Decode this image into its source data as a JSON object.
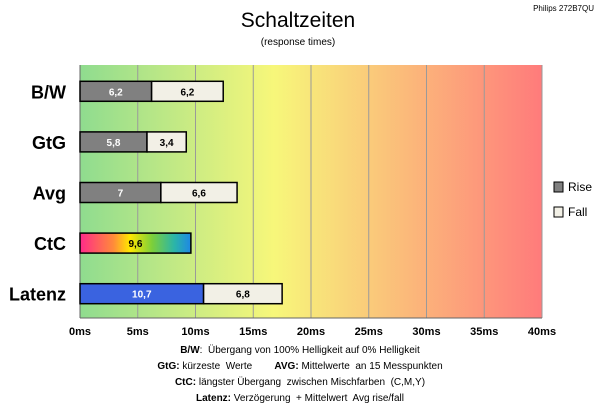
{
  "chart_data": {
    "type": "bar",
    "title": "Schaltzeiten",
    "subtitle": "(response times)",
    "corner_label": "Philips 272B7QU",
    "categories": [
      "B/W",
      "GtG",
      "Avg",
      "CtC",
      "Latenz"
    ],
    "series": [
      {
        "name": "Rise",
        "color": "#808080",
        "values": [
          6.2,
          5.8,
          7,
          null,
          null
        ],
        "labels": [
          "6,2",
          "5,8",
          "7",
          "",
          ""
        ]
      },
      {
        "name": "Fall",
        "color": "#f2f0e6",
        "values": [
          6.2,
          3.4,
          6.6,
          null,
          null
        ],
        "labels": [
          "6,2",
          "3,4",
          "6,6",
          "",
          ""
        ]
      },
      {
        "name": "",
        "color": "#gradient-ctc",
        "values": [
          null,
          null,
          null,
          9.6,
          null
        ],
        "labels": [
          "",
          "",
          "",
          "9,6",
          ""
        ]
      },
      {
        "name": "",
        "color": "#3a63e0",
        "values": [
          null,
          null,
          null,
          null,
          10.7
        ],
        "labels": [
          "",
          "",
          "",
          "",
          "10,7"
        ]
      },
      {
        "name": "",
        "color": "#f2f0e6",
        "values": [
          null,
          null,
          null,
          null,
          6.8
        ],
        "labels": [
          "",
          "",
          "",
          "",
          "6,8"
        ]
      }
    ],
    "stacked": true,
    "orientation": "horizontal",
    "xlim": [
      0,
      40
    ],
    "xticks": [
      "0ms",
      "5ms",
      "10ms",
      "15ms",
      "20ms",
      "25ms",
      "30ms",
      "35ms",
      "40ms"
    ],
    "grid": true,
    "legend": {
      "position": "right",
      "items": [
        "Rise",
        "Fall"
      ]
    },
    "background_gradient": [
      "#8fdc8f",
      "#f7f77a",
      "#ff7b7b"
    ]
  },
  "footnotes": [
    [
      {
        "b": "B/W",
        "t": ":  Übergang von 100% Helligkeit auf 0% Helligkeit"
      }
    ],
    [
      {
        "b": "GtG:",
        "t": " kürzeste  Werte        "
      },
      {
        "b": "AVG:",
        "t": " Mittelwerte  an 15 Messpunkten"
      }
    ],
    [
      {
        "b": "CtC:",
        "t": " längster Übergang  zwischen Mischfarben  (C,M,Y)"
      }
    ],
    [
      {
        "b": "Latenz:",
        "t": " Verzögerung  + Mittelwert  Avg rise/fall"
      }
    ]
  ]
}
